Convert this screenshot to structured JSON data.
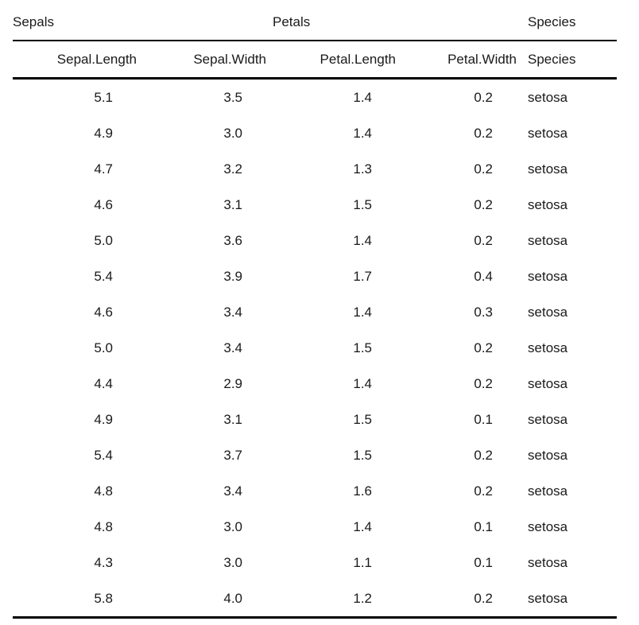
{
  "chart_data": {
    "type": "table",
    "title": "",
    "spanners": [
      {
        "label": "Sepals",
        "columns": [
          0,
          1
        ],
        "align": "left"
      },
      {
        "label": "Petals",
        "columns": [
          2,
          3
        ],
        "align": "left"
      },
      {
        "label": "Species",
        "columns": [
          4
        ],
        "align": "left"
      }
    ],
    "columns": [
      "Sepal.Length",
      "Sepal.Width",
      "Petal.Length",
      "Petal.Width",
      "Species"
    ],
    "column_alignments": [
      "right",
      "right",
      "right",
      "right",
      "left"
    ],
    "rows": [
      [
        "5.1",
        "3.5",
        "1.4",
        "0.2",
        "setosa"
      ],
      [
        "4.9",
        "3.0",
        "1.4",
        "0.2",
        "setosa"
      ],
      [
        "4.7",
        "3.2",
        "1.3",
        "0.2",
        "setosa"
      ],
      [
        "4.6",
        "3.1",
        "1.5",
        "0.2",
        "setosa"
      ],
      [
        "5.0",
        "3.6",
        "1.4",
        "0.2",
        "setosa"
      ],
      [
        "5.4",
        "3.9",
        "1.7",
        "0.4",
        "setosa"
      ],
      [
        "4.6",
        "3.4",
        "1.4",
        "0.3",
        "setosa"
      ],
      [
        "5.0",
        "3.4",
        "1.5",
        "0.2",
        "setosa"
      ],
      [
        "4.4",
        "2.9",
        "1.4",
        "0.2",
        "setosa"
      ],
      [
        "4.9",
        "3.1",
        "1.5",
        "0.1",
        "setosa"
      ],
      [
        "5.4",
        "3.7",
        "1.5",
        "0.2",
        "setosa"
      ],
      [
        "4.8",
        "3.4",
        "1.6",
        "0.2",
        "setosa"
      ],
      [
        "4.8",
        "3.0",
        "1.4",
        "0.1",
        "setosa"
      ],
      [
        "4.3",
        "3.0",
        "1.1",
        "0.1",
        "setosa"
      ],
      [
        "5.8",
        "4.0",
        "1.2",
        "0.2",
        "setosa"
      ]
    ],
    "styles": {
      "text_color": "#1a1a1a",
      "rule_color": "#000000",
      "background": "#ffffff"
    },
    "layout": {
      "grid": "off",
      "rules": [
        "thin-under-spanners",
        "thick-under-headers",
        "thick-bottom"
      ]
    }
  }
}
